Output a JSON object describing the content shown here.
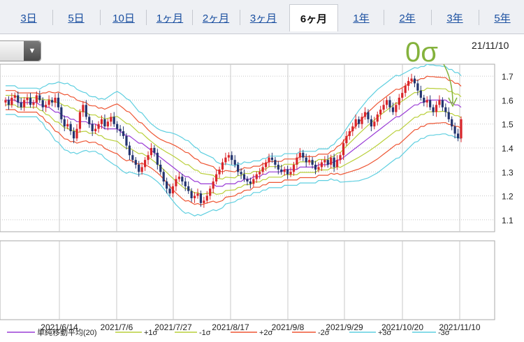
{
  "tabs": [
    "3日",
    "5日",
    "10日",
    "1ヶ月",
    "2ヶ月",
    "3ヶ月",
    "6ヶ月",
    "1年",
    "2年",
    "3年",
    "5年"
  ],
  "active_tab": "6ヶ月",
  "current_date": "21/11/10",
  "annotation": "0σ",
  "colors": {
    "up": "#d9262b",
    "down": "#23346f",
    "sma": "#9a3dd6",
    "sigma1": "#b9cf3a",
    "sigma2": "#ee5533",
    "sigma3": "#5ecfe0",
    "annotation": "#84b23c",
    "grid": "#c8c8c8"
  },
  "chart_data": {
    "type": "candlestick",
    "ylim": [
      1.05,
      1.75
    ],
    "y_ticks": [
      "1.7",
      "1.6",
      "1.5",
      "1.4",
      "1.3",
      "1.2",
      "1.1"
    ],
    "x_tick_labels": [
      "2021/6/14",
      "2021/7/6",
      "2021/7/27",
      "2021/8/17",
      "2021/9/8",
      "2021/9/29",
      "2021/10/20",
      "2021/11/10"
    ],
    "legend": [
      {
        "label": "単純移動平均(20)",
        "key": "sma"
      },
      {
        "label": "+1σ",
        "key": "sigma1"
      },
      {
        "label": "-1σ",
        "key": "sigma1"
      },
      {
        "label": "+2σ",
        "key": "sigma2"
      },
      {
        "label": "-2σ",
        "key": "sigma2"
      },
      {
        "label": "+3σ",
        "key": "sigma3"
      },
      {
        "label": "-3σ",
        "key": "sigma3"
      }
    ],
    "close": [
      1.6,
      1.58,
      1.61,
      1.62,
      1.59,
      1.57,
      1.6,
      1.61,
      1.58,
      1.59,
      1.62,
      1.6,
      1.57,
      1.58,
      1.6,
      1.59,
      1.61,
      1.57,
      1.52,
      1.49,
      1.5,
      1.47,
      1.44,
      1.48,
      1.55,
      1.58,
      1.53,
      1.5,
      1.47,
      1.48,
      1.5,
      1.52,
      1.49,
      1.51,
      1.53,
      1.5,
      1.48,
      1.47,
      1.45,
      1.41,
      1.37,
      1.35,
      1.33,
      1.3,
      1.32,
      1.35,
      1.37,
      1.4,
      1.38,
      1.33,
      1.3,
      1.26,
      1.23,
      1.21,
      1.24,
      1.27,
      1.28,
      1.26,
      1.24,
      1.22,
      1.19,
      1.2,
      1.21,
      1.17,
      1.18,
      1.2,
      1.23,
      1.26,
      1.29,
      1.31,
      1.34,
      1.36,
      1.37,
      1.35,
      1.33,
      1.3,
      1.29,
      1.27,
      1.26,
      1.25,
      1.27,
      1.29,
      1.3,
      1.32,
      1.34,
      1.36,
      1.35,
      1.33,
      1.31,
      1.3,
      1.31,
      1.29,
      1.3,
      1.33,
      1.36,
      1.38,
      1.36,
      1.34,
      1.35,
      1.33,
      1.31,
      1.32,
      1.34,
      1.35,
      1.33,
      1.36,
      1.32,
      1.35,
      1.37,
      1.42,
      1.45,
      1.47,
      1.49,
      1.52,
      1.5,
      1.53,
      1.55,
      1.52,
      1.49,
      1.51,
      1.54,
      1.56,
      1.58,
      1.6,
      1.57,
      1.55,
      1.58,
      1.61,
      1.63,
      1.66,
      1.68,
      1.69,
      1.67,
      1.64,
      1.61,
      1.59,
      1.6,
      1.57,
      1.55,
      1.58,
      1.6,
      1.57,
      1.55,
      1.52,
      1.49,
      1.46,
      1.44,
      1.52
    ],
    "sma": [
      1.6,
      1.6,
      1.6,
      1.6,
      1.59,
      1.59,
      1.59,
      1.59,
      1.59,
      1.59,
      1.59,
      1.58,
      1.58,
      1.57,
      1.57,
      1.56,
      1.55,
      1.55,
      1.54,
      1.53,
      1.53,
      1.52,
      1.52,
      1.51,
      1.51,
      1.51,
      1.51,
      1.5,
      1.5,
      1.5,
      1.49,
      1.49,
      1.48,
      1.48,
      1.48,
      1.48,
      1.48,
      1.47,
      1.46,
      1.45,
      1.45,
      1.44,
      1.43,
      1.42,
      1.42,
      1.41,
      1.4,
      1.39,
      1.38,
      1.37,
      1.36,
      1.35,
      1.34,
      1.33,
      1.32,
      1.31,
      1.3,
      1.29,
      1.28,
      1.28,
      1.27,
      1.26,
      1.26,
      1.25,
      1.25,
      1.25,
      1.25,
      1.25,
      1.24,
      1.24,
      1.24,
      1.25,
      1.25,
      1.25,
      1.25,
      1.26,
      1.26,
      1.27,
      1.27,
      1.27,
      1.28,
      1.28,
      1.28,
      1.29,
      1.29,
      1.3,
      1.3,
      1.3,
      1.3,
      1.3,
      1.31,
      1.31,
      1.31,
      1.31,
      1.31,
      1.32,
      1.32,
      1.32,
      1.32,
      1.32,
      1.32,
      1.33,
      1.33,
      1.33,
      1.33,
      1.34,
      1.34,
      1.35,
      1.35,
      1.36,
      1.37,
      1.38,
      1.39,
      1.4,
      1.41,
      1.42,
      1.43,
      1.44,
      1.45,
      1.46,
      1.47,
      1.48,
      1.49,
      1.5,
      1.51,
      1.52,
      1.53,
      1.53,
      1.54,
      1.55,
      1.56,
      1.57,
      1.58,
      1.58,
      1.59,
      1.59,
      1.6,
      1.6,
      1.6,
      1.6,
      1.6,
      1.6,
      1.6,
      1.59,
      1.59,
      1.58,
      1.58,
      1.57
    ],
    "sigma": [
      0.02,
      0.02,
      0.02,
      0.02,
      0.02,
      0.02,
      0.02,
      0.02,
      0.02,
      0.02,
      0.02,
      0.022,
      0.025,
      0.03,
      0.033,
      0.036,
      0.04,
      0.042,
      0.044,
      0.046,
      0.047,
      0.047,
      0.046,
      0.045,
      0.043,
      0.041,
      0.04,
      0.039,
      0.038,
      0.038,
      0.038,
      0.039,
      0.041,
      0.044,
      0.047,
      0.05,
      0.052,
      0.053,
      0.053,
      0.052,
      0.05,
      0.048,
      0.046,
      0.044,
      0.042,
      0.04,
      0.038,
      0.037,
      0.037,
      0.037,
      0.038,
      0.04,
      0.042,
      0.045,
      0.047,
      0.049,
      0.05,
      0.051,
      0.051,
      0.05,
      0.049,
      0.048,
      0.046,
      0.044,
      0.042,
      0.04,
      0.038,
      0.036,
      0.034,
      0.032,
      0.03,
      0.028,
      0.027,
      0.026,
      0.025,
      0.025,
      0.024,
      0.024,
      0.023,
      0.023,
      0.022,
      0.022,
      0.022,
      0.022,
      0.022,
      0.022,
      0.022,
      0.022,
      0.022,
      0.022,
      0.022,
      0.022,
      0.022,
      0.022,
      0.022,
      0.022,
      0.022,
      0.022,
      0.022,
      0.022,
      0.022,
      0.022,
      0.022,
      0.022,
      0.022,
      0.023,
      0.025,
      0.028,
      0.031,
      0.034,
      0.037,
      0.04,
      0.043,
      0.046,
      0.049,
      0.051,
      0.053,
      0.055,
      0.056,
      0.057,
      0.058,
      0.058,
      0.058,
      0.058,
      0.058,
      0.058,
      0.058,
      0.057,
      0.056,
      0.055,
      0.054,
      0.053,
      0.052,
      0.051,
      0.05,
      0.05,
      0.05,
      0.049,
      0.049,
      0.048,
      0.048,
      0.047,
      0.047,
      0.046,
      0.046,
      0.045,
      0.045,
      0.044,
      0.044,
      0.044
    ]
  }
}
